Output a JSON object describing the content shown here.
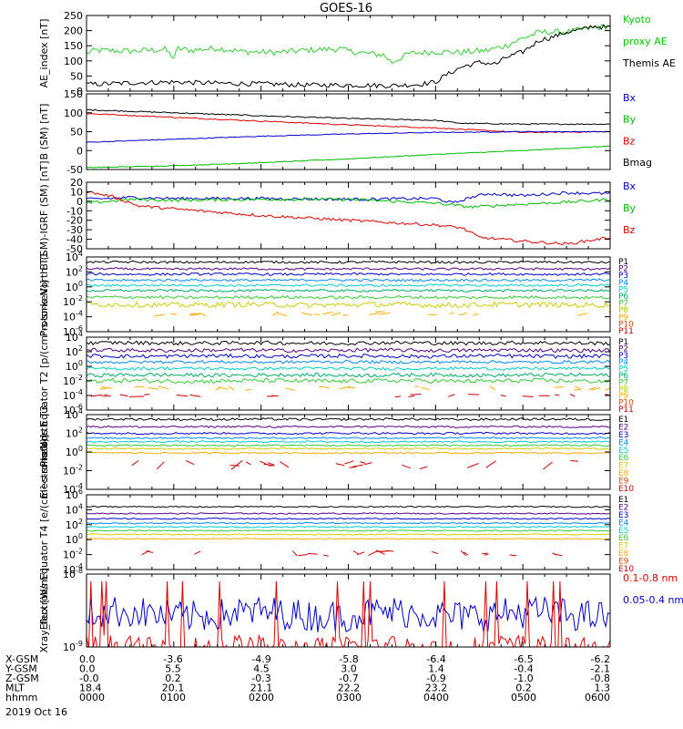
{
  "title": "GOES-16",
  "date_label": "2019 Oct 16",
  "chart_data": [
    {
      "type": "line",
      "ylabel": "AE_index [nT]",
      "ylim": [
        0,
        250
      ],
      "yticks": [
        "250",
        "200",
        "150",
        "100",
        "50",
        "0"
      ],
      "legend": [
        {
          "name": "Kyoto",
          "color": "#00cc00"
        },
        {
          "name": "proxy AE",
          "color": "#00cc00"
        },
        {
          "name": "Themis AE",
          "color": "#000000"
        }
      ],
      "series": [
        {
          "name": "Kyoto proxy AE",
          "color": "#33cc33",
          "x": [
            0,
            0.1,
            0.5,
            0.9,
            1.0,
            1.05,
            1.2,
            1.5,
            1.8,
            2.2,
            2.5,
            2.9,
            3.0,
            3.2,
            3.4,
            3.5,
            3.7,
            4.0,
            4.3,
            4.6,
            4.8,
            5.0,
            5.2,
            5.5,
            5.7,
            6.0
          ],
          "y": [
            125,
            135,
            132,
            138,
            110,
            140,
            135,
            142,
            130,
            128,
            135,
            140,
            132,
            125,
            120,
            95,
            125,
            130,
            128,
            135,
            150,
            175,
            195,
            195,
            205,
            215
          ],
          "noise": 10
        },
        {
          "name": "Themis AE",
          "color": "#000000",
          "x": [
            0,
            0.3,
            0.6,
            1.0,
            1.5,
            2.0,
            2.5,
            3.0,
            3.5,
            3.8,
            4.0,
            4.1,
            4.3,
            4.5,
            4.7,
            4.8,
            5.0,
            5.2,
            5.3,
            5.5,
            5.7,
            5.8,
            6.0
          ],
          "y": [
            22,
            25,
            28,
            30,
            26,
            24,
            20,
            20,
            18,
            22,
            30,
            50,
            80,
            95,
            90,
            110,
            130,
            170,
            175,
            195,
            205,
            215,
            210
          ],
          "noise": 8
        }
      ]
    },
    {
      "type": "line",
      "ylabel": "B (SM) [nT]",
      "ylim": [
        -50,
        150
      ],
      "yticks": [
        "150",
        "100",
        "50",
        "0",
        "-50"
      ],
      "legend": [
        {
          "name": "Bx",
          "color": "#0000cc"
        },
        {
          "name": "By",
          "color": "#00bb00"
        },
        {
          "name": "Bz",
          "color": "#dd0000"
        },
        {
          "name": "Bmag",
          "color": "#000000"
        }
      ],
      "series": [
        {
          "name": "Bmag",
          "color": "#000000",
          "x": [
            0,
            1,
            2,
            3,
            4,
            4.3,
            5,
            6
          ],
          "y": [
            108,
            100,
            92,
            85,
            80,
            72,
            70,
            70
          ],
          "noise": 1.5
        },
        {
          "name": "Bz",
          "color": "#dd0000",
          "x": [
            0,
            1,
            2,
            3,
            4,
            4.4,
            5,
            6
          ],
          "y": [
            98,
            88,
            78,
            68,
            60,
            55,
            48,
            50
          ],
          "noise": 1.5
        },
        {
          "name": "Bx",
          "color": "#0000cc",
          "x": [
            0,
            1,
            2,
            3,
            4,
            5,
            6
          ],
          "y": [
            22,
            30,
            38,
            44,
            48,
            50,
            50
          ],
          "noise": 1
        },
        {
          "name": "By",
          "color": "#00bb00",
          "x": [
            0,
            1,
            2,
            3,
            4,
            5,
            6
          ],
          "y": [
            -45,
            -40,
            -32,
            -22,
            -10,
            0,
            12
          ],
          "noise": 1
        }
      ]
    },
    {
      "type": "line",
      "ylabel": "B (SM)-IGRF (SM) [nT]",
      "ylim": [
        -50,
        20
      ],
      "yticks": [
        "20",
        "10",
        "0",
        "-10",
        "-20",
        "-30",
        "-40",
        "-50"
      ],
      "legend": [
        {
          "name": "Bx",
          "color": "#0000cc"
        },
        {
          "name": "By",
          "color": "#00bb00"
        },
        {
          "name": "Bz",
          "color": "#dd0000"
        }
      ],
      "series": [
        {
          "name": "Bx",
          "color": "#0000cc",
          "x": [
            0,
            0.5,
            1,
            2,
            3,
            4,
            4.2,
            4.4,
            4.6,
            5,
            5.5,
            6
          ],
          "y": [
            2,
            4,
            3,
            3,
            2,
            3,
            -2,
            4,
            8,
            6,
            9,
            8
          ],
          "noise": 1.5
        },
        {
          "name": "By",
          "color": "#00bb00",
          "x": [
            0,
            0.5,
            1,
            2,
            3,
            4,
            4.4,
            5,
            5.5,
            6
          ],
          "y": [
            -2,
            2,
            1,
            2,
            2,
            -2,
            -6,
            -3,
            -1,
            2
          ],
          "noise": 1.5
        },
        {
          "name": "Bz",
          "color": "#dd0000",
          "x": [
            0,
            0.3,
            0.6,
            1,
            2,
            3,
            4,
            4.3,
            4.5,
            5,
            5.5,
            6
          ],
          "y": [
            10,
            5,
            -5,
            -8,
            -15,
            -20,
            -25,
            -28,
            -38,
            -42,
            -45,
            -38
          ],
          "noise": 1.5
        }
      ]
    },
    {
      "type": "line",
      "ylabel": "Protons North T1",
      "log": true,
      "yexp": [
        -6,
        4
      ],
      "yticks": [
        {
          "exp": 4,
          "text": "4"
        },
        {
          "exp": 2,
          "text": "2"
        },
        {
          "exp": 0,
          "text": "0"
        },
        {
          "exp": -2,
          "text": "-2"
        },
        {
          "exp": -4,
          "text": "-4"
        },
        {
          "exp": -6,
          "text": "-6"
        }
      ],
      "legend": [
        {
          "name": "P1",
          "color": "#000000"
        },
        {
          "name": "P2",
          "color": "#550088"
        },
        {
          "name": "P3",
          "color": "#0000cc"
        },
        {
          "name": "P4",
          "color": "#0088ff"
        },
        {
          "name": "P5",
          "color": "#00cccc"
        },
        {
          "name": "P6",
          "color": "#00aa66"
        },
        {
          "name": "P7",
          "color": "#33cc33"
        },
        {
          "name": "P8",
          "color": "#aacc00"
        },
        {
          "name": "P9",
          "color": "#ffaa00"
        },
        {
          "name": "P10",
          "color": "#dd4400"
        },
        {
          "name": "P11",
          "color": "#cc0000"
        }
      ],
      "series": [
        {
          "name": "P1",
          "color": "#000000",
          "level": 3.3,
          "noise": 0.15
        },
        {
          "name": "P2",
          "color": "#550088",
          "level": 2.4,
          "noise": 0.15
        },
        {
          "name": "P3",
          "color": "#0000cc",
          "level": 1.7,
          "noise": 0.15
        },
        {
          "name": "P4",
          "color": "#0088ff",
          "level": 0.9,
          "noise": 0.15
        },
        {
          "name": "P5",
          "color": "#00cccc",
          "level": 0.2,
          "noise": 0.15
        },
        {
          "name": "P6",
          "color": "#00aa66",
          "level": -0.5,
          "noise": 0.15
        },
        {
          "name": "P7",
          "color": "#33cc33",
          "level": -1.4,
          "noise": 0.2
        },
        {
          "name": "P8",
          "color": "#cccc00",
          "level": -2.4,
          "noise": 0.35
        },
        {
          "name": "P9",
          "color": "#ffaa00",
          "level": -3.6,
          "noise": 0.3,
          "sparse": true
        }
      ]
    },
    {
      "type": "line",
      "ylabel": "Protons Equator T2 [p/(cm²-s-sr-keV)]",
      "log": true,
      "yexp": [
        -6,
        4
      ],
      "yticks": [
        {
          "exp": 4,
          "text": "4"
        },
        {
          "exp": 2,
          "text": "2"
        },
        {
          "exp": 0,
          "text": "0"
        },
        {
          "exp": -2,
          "text": "-2"
        },
        {
          "exp": -4,
          "text": "-4"
        },
        {
          "exp": -6,
          "text": "-6"
        }
      ],
      "legend": [
        {
          "name": "P1",
          "color": "#000000"
        },
        {
          "name": "P2",
          "color": "#550088"
        },
        {
          "name": "P3",
          "color": "#0000cc"
        },
        {
          "name": "P4",
          "color": "#0088ff"
        },
        {
          "name": "P5",
          "color": "#00cccc"
        },
        {
          "name": "P6",
          "color": "#00aa66"
        },
        {
          "name": "P7",
          "color": "#33cc33"
        },
        {
          "name": "P8",
          "color": "#aacc00"
        },
        {
          "name": "P9",
          "color": "#ffaa00"
        },
        {
          "name": "P10",
          "color": "#dd4400"
        },
        {
          "name": "P11",
          "color": "#cc0000"
        }
      ],
      "series": [
        {
          "name": "P1",
          "color": "#000000",
          "level": 3.2,
          "noise": 0.25
        },
        {
          "name": "P2",
          "color": "#550088",
          "level": 2.2,
          "noise": 0.25
        },
        {
          "name": "P3",
          "color": "#0000cc",
          "level": 1.4,
          "noise": 0.25
        },
        {
          "name": "P4",
          "color": "#0088ff",
          "level": 0.6,
          "noise": 0.2
        },
        {
          "name": "P5",
          "color": "#00cccc",
          "level": -0.3,
          "noise": 0.2
        },
        {
          "name": "P6",
          "color": "#00aa66",
          "level": -1.2,
          "noise": 0.25
        },
        {
          "name": "P7",
          "color": "#33cc33",
          "level": -2.0,
          "noise": 0.3
        },
        {
          "name": "P8",
          "color": "#ffaa00",
          "level": -3.0,
          "noise": 0.3,
          "sparse": true
        },
        {
          "name": "P10",
          "color": "#cc0000",
          "level": -4.0,
          "noise": 0.2,
          "sparse": true
        }
      ]
    },
    {
      "type": "line",
      "ylabel": "Electrons North T3",
      "log": true,
      "yexp": [
        -4,
        4
      ],
      "yticks": [
        {
          "exp": 4,
          "text": "4"
        },
        {
          "exp": 2,
          "text": "2"
        },
        {
          "exp": 0,
          "text": "0"
        },
        {
          "exp": -2,
          "text": "-2"
        },
        {
          "exp": -4,
          "text": "-4"
        }
      ],
      "legend": [
        {
          "name": "E1",
          "color": "#000000"
        },
        {
          "name": "E2",
          "color": "#550088"
        },
        {
          "name": "E3",
          "color": "#0000cc"
        },
        {
          "name": "E4",
          "color": "#0088ff"
        },
        {
          "name": "E5",
          "color": "#00cccc"
        },
        {
          "name": "E6",
          "color": "#33cc33"
        },
        {
          "name": "E7",
          "color": "#cccc00"
        },
        {
          "name": "E8",
          "color": "#ffaa00"
        },
        {
          "name": "E9",
          "color": "#dd4400"
        },
        {
          "name": "E10",
          "color": "#cc0000"
        }
      ],
      "series": [
        {
          "name": "E1",
          "color": "#000000",
          "level": 3.5,
          "noise": 0.12
        },
        {
          "name": "E2",
          "color": "#550088",
          "level": 2.7,
          "noise": 0.1
        },
        {
          "name": "E3",
          "color": "#0000cc",
          "level": 2.0,
          "noise": 0.1
        },
        {
          "name": "E4",
          "color": "#0088ff",
          "level": 1.5,
          "noise": 0.08
        },
        {
          "name": "E5",
          "color": "#00cccc",
          "level": 1.1,
          "noise": 0.08
        },
        {
          "name": "E6",
          "color": "#33cc33",
          "level": 0.7,
          "noise": 0.08
        },
        {
          "name": "E7",
          "color": "#cccc00",
          "level": 0.35,
          "noise": 0.08
        },
        {
          "name": "E8",
          "color": "#ffaa00",
          "level": -0.1,
          "noise": 0.08
        },
        {
          "name": "E9",
          "color": "#cc0000",
          "level": -1.4,
          "noise": 0.5,
          "sparse": true
        }
      ]
    },
    {
      "type": "line",
      "ylabel": "Electrons Equator T4 [e/(cm²-s-sr-keV)]",
      "log": true,
      "yexp": [
        -4,
        6
      ],
      "yticks": [
        {
          "exp": 6,
          "text": "6"
        },
        {
          "exp": 4,
          "text": "4"
        },
        {
          "exp": 2,
          "text": "2"
        },
        {
          "exp": 0,
          "text": "0"
        },
        {
          "exp": -2,
          "text": "-2"
        },
        {
          "exp": -4,
          "text": "-4"
        }
      ],
      "legend": [
        {
          "name": "E1",
          "color": "#000000"
        },
        {
          "name": "E2",
          "color": "#550088"
        },
        {
          "name": "E3",
          "color": "#0000cc"
        },
        {
          "name": "E4",
          "color": "#0088ff"
        },
        {
          "name": "E5",
          "color": "#00cccc"
        },
        {
          "name": "E6",
          "color": "#33cc33"
        },
        {
          "name": "E7",
          "color": "#cccc00"
        },
        {
          "name": "E8",
          "color": "#ffaa00"
        },
        {
          "name": "E9",
          "color": "#dd4400"
        },
        {
          "name": "E10",
          "color": "#cc0000"
        }
      ],
      "series": [
        {
          "name": "E1",
          "color": "#000000",
          "level": 4.4,
          "noise": 0.08
        },
        {
          "name": "E2",
          "color": "#550088",
          "level": 3.5,
          "noise": 0.08
        },
        {
          "name": "E3",
          "color": "#0000cc",
          "level": 2.8,
          "noise": 0.08
        },
        {
          "name": "E4",
          "color": "#0088ff",
          "level": 2.2,
          "noise": 0.08
        },
        {
          "name": "E5",
          "color": "#00cccc",
          "level": 1.7,
          "noise": 0.08
        },
        {
          "name": "E6",
          "color": "#33cc33",
          "level": 1.2,
          "noise": 0.08
        },
        {
          "name": "E7",
          "color": "#cccc00",
          "level": 0.7,
          "noise": 0.08
        },
        {
          "name": "E8",
          "color": "#ffaa00",
          "level": 0.1,
          "noise": 0.08
        },
        {
          "name": "E9",
          "color": "#cc0000",
          "level": -1.8,
          "noise": 0.4,
          "sparse": true
        }
      ]
    },
    {
      "type": "line",
      "ylabel": "Xray_flux [W/m²]",
      "log": true,
      "yexp": [
        -9,
        -8
      ],
      "yticks": [
        {
          "exp": -8,
          "text": "-8"
        },
        {
          "exp": -9,
          "text": "-9"
        }
      ],
      "legend": [
        {
          "name": "0.1-0.8 nm",
          "color": "#dd0000"
        },
        {
          "name": "0.05-0.4 nm",
          "color": "#0000cc"
        }
      ],
      "series": [
        {
          "name": "0.05-0.4 nm",
          "color": "#0000cc",
          "level": -8.55,
          "noise": 0.22
        },
        {
          "name": "0.1-0.8 nm",
          "color": "#dd0000",
          "level": -9.0,
          "noise": 0.15,
          "spikes": true
        }
      ]
    }
  ],
  "x_axis": {
    "rows": [
      {
        "label": "X-GSM",
        "values": [
          "0.0",
          "-3.6",
          "-4.9",
          "-5.8",
          "-6.4",
          "-6.5",
          "-6.2"
        ]
      },
      {
        "label": "Y-GSM",
        "values": [
          "0.0",
          "5.5",
          "4.5",
          "3.0",
          "1.4",
          "-0.4",
          "-2.1"
        ]
      },
      {
        "label": "Z-GSM",
        "values": [
          "-0.0",
          "0.2",
          "-0.3",
          "-0.7",
          "-0.9",
          "-1.0",
          "-0.8"
        ]
      },
      {
        "label": "MLT",
        "values": [
          "18.4",
          "20.1",
          "21.1",
          "22.2",
          "23.2",
          "0.2",
          "1.3"
        ]
      },
      {
        "label": "hhmm",
        "values": [
          "0000",
          "0100",
          "0200",
          "0300",
          "0400",
          "0500",
          "0600"
        ]
      }
    ]
  }
}
